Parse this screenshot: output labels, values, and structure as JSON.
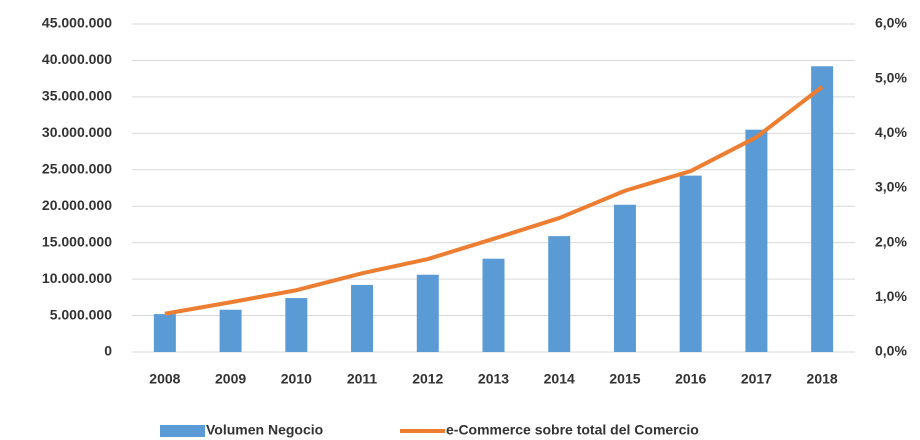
{
  "chart_data": {
    "type": "bar",
    "categories": [
      "2008",
      "2009",
      "2010",
      "2011",
      "2012",
      "2013",
      "2014",
      "2015",
      "2016",
      "2017",
      "2018"
    ],
    "series": [
      {
        "name": "Volumen Negocio",
        "type": "bar",
        "color": "#5b9bd5",
        "values": [
          5200000,
          5800000,
          7400000,
          9200000,
          10600000,
          12800000,
          15900000,
          20200000,
          24200000,
          30500000,
          39200000
        ]
      },
      {
        "name": "e-Commerce sobre total del Comercio",
        "type": "line",
        "axis": "y2",
        "color": "#ed7d31",
        "values": [
          0.7,
          0.91,
          1.13,
          1.44,
          1.7,
          2.07,
          2.45,
          2.95,
          3.31,
          3.93,
          4.85
        ]
      }
    ],
    "ylim": [
      0,
      45000000
    ],
    "yticks": [
      0,
      {
        "value": 5000000,
        "label": "5.000.000"
      },
      {
        "value": 10000000,
        "label": "10.000.000"
      },
      {
        "value": 15000000,
        "label": "15.000.000"
      },
      {
        "value": 20000000,
        "label": "20.000.000"
      },
      {
        "value": 25000000,
        "label": "25.000.000"
      },
      {
        "value": 30000000,
        "label": "30.000.000"
      },
      {
        "value": 35000000,
        "label": "35.000.000"
      },
      {
        "value": 40000000,
        "label": "40.000.000"
      },
      {
        "value": 45000000,
        "label": "45.000.000"
      }
    ],
    "y2lim": [
      0,
      6
    ],
    "y2ticks": [
      {
        "value": 0,
        "label": "0,0%"
      },
      {
        "value": 1,
        "label": "1,0%"
      },
      {
        "value": 2,
        "label": "2,0%"
      },
      {
        "value": 3,
        "label": "3,0%"
      },
      {
        "value": 4,
        "label": "4,0%"
      },
      {
        "value": 5,
        "label": "5,0%"
      },
      {
        "value": 6,
        "label": "6,0%"
      }
    ],
    "grid": true,
    "legend": "bottom"
  }
}
